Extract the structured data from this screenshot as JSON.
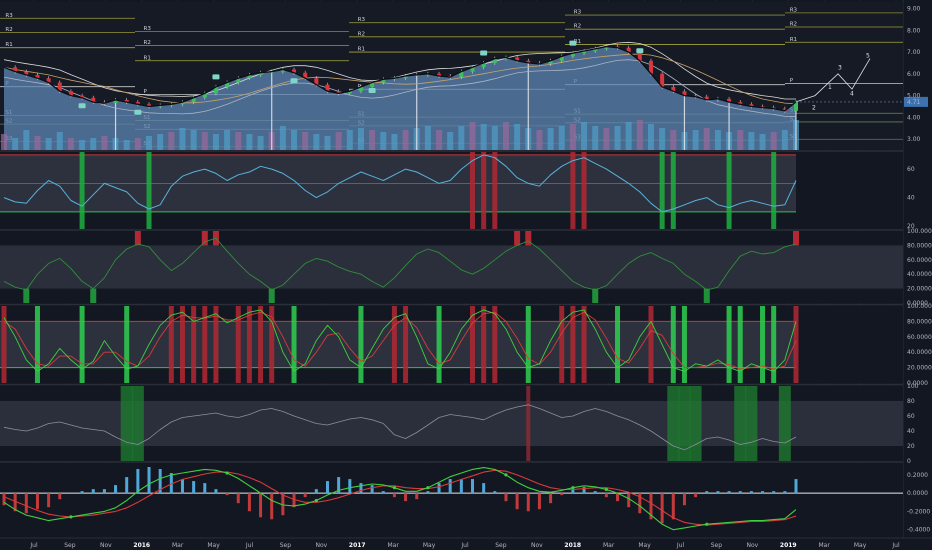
{
  "chart_data": {
    "type": "line",
    "x_axis": {
      "labels": [
        "Jul",
        "Sep",
        "Nov",
        "2016",
        "Mar",
        "May",
        "Jul",
        "Sep",
        "Nov",
        "2017",
        "Mar",
        "May",
        "Jul",
        "Sep",
        "Nov",
        "2018",
        "Mar",
        "May",
        "Jul",
        "Sep",
        "Nov",
        "2019",
        "Mar",
        "May",
        "Jul"
      ],
      "year_labels": [
        "2016",
        "2017",
        "2018",
        "2019"
      ]
    },
    "panes": [
      {
        "name": "price",
        "yticks": [
          "9.00",
          "8.00",
          "7.00",
          "6.00",
          "5.00",
          "4.00",
          "3.00"
        ],
        "ylim": [
          2.5,
          9.3
        ],
        "current_price": "4.71",
        "close": [
          6.3,
          6.1,
          5.95,
          5.8,
          5.6,
          5.2,
          5.0,
          4.9,
          4.7,
          4.65,
          4.8,
          4.7,
          4.6,
          4.5,
          4.55,
          4.6,
          4.7,
          4.9,
          5.1,
          5.4,
          5.6,
          5.8,
          5.95,
          6.05,
          6.1,
          6.2,
          6.05,
          5.8,
          5.5,
          5.2,
          5.1,
          5.2,
          5.4,
          5.6,
          5.75,
          5.8,
          5.9,
          5.95,
          6.0,
          5.9,
          5.85,
          6.1,
          6.3,
          6.5,
          6.7,
          6.75,
          6.6,
          6.5,
          6.45,
          6.6,
          6.8,
          6.95,
          7.05,
          7.15,
          7.25,
          7.2,
          7.0,
          6.6,
          6.0,
          5.4,
          5.2,
          5.0,
          4.95,
          4.8,
          4.85,
          4.7,
          4.6,
          4.5,
          4.45,
          4.4,
          4.3,
          4.71
        ],
        "volume": [
          0.4,
          0.3,
          0.5,
          0.35,
          0.3,
          0.45,
          0.3,
          0.25,
          0.3,
          0.35,
          0.3,
          0.25,
          0.3,
          0.35,
          0.4,
          0.45,
          0.55,
          0.5,
          0.45,
          0.4,
          0.5,
          0.45,
          0.4,
          0.35,
          0.45,
          0.6,
          0.5,
          0.45,
          0.4,
          0.35,
          0.45,
          0.5,
          0.55,
          0.5,
          0.45,
          0.4,
          0.5,
          0.55,
          0.6,
          0.5,
          0.45,
          0.6,
          0.7,
          0.65,
          0.6,
          0.7,
          0.65,
          0.55,
          0.5,
          0.55,
          0.6,
          0.65,
          0.7,
          0.6,
          0.55,
          0.6,
          0.7,
          0.75,
          0.65,
          0.55,
          0.5,
          0.45,
          0.5,
          0.55,
          0.5,
          0.45,
          0.5,
          0.45,
          0.4,
          0.45,
          0.5,
          0.75
        ],
        "levels": [
          {
            "label": "R3",
            "value": 8.2
          },
          {
            "label": "R2",
            "value": 7.55
          },
          {
            "label": "R1",
            "value": 6.85
          },
          {
            "label": "P",
            "value": 5.2
          },
          {
            "label": "S1",
            "value": 3.95
          },
          {
            "label": "S2",
            "value": 3.55
          },
          {
            "label": "S3",
            "value": 2.75
          }
        ],
        "projection_labels": [
          "1",
          "2",
          "3",
          "4",
          "5"
        ]
      },
      {
        "name": "rsi",
        "yticks": [
          "60",
          "40",
          "20"
        ],
        "ylim": [
          18,
          72
        ],
        "upper": 70,
        "lower": 30,
        "values": [
          40,
          37,
          36,
          45,
          52,
          48,
          38,
          34,
          42,
          50,
          47,
          44,
          36,
          32,
          35,
          48,
          55,
          58,
          60,
          57,
          52,
          56,
          58,
          62,
          60,
          57,
          52,
          45,
          40,
          44,
          50,
          54,
          58,
          55,
          52,
          56,
          60,
          58,
          54,
          50,
          52,
          60,
          66,
          70,
          68,
          62,
          54,
          50,
          48,
          56,
          62,
          66,
          68,
          64,
          60,
          55,
          50,
          44,
          36,
          30,
          32,
          35,
          38,
          40,
          35,
          33,
          36,
          38,
          36,
          34,
          35,
          52
        ]
      },
      {
        "name": "mfi",
        "yticks": [
          "100.0000",
          "80.0000",
          "60.0000",
          "40.0000",
          "20.0000",
          "0.0000"
        ],
        "ylim": [
          0,
          100
        ],
        "upper": 80,
        "lower": 20,
        "values": [
          30,
          22,
          18,
          40,
          55,
          62,
          48,
          30,
          20,
          35,
          60,
          75,
          82,
          78,
          60,
          45,
          55,
          70,
          85,
          90,
          72,
          55,
          40,
          30,
          18,
          25,
          40,
          55,
          62,
          58,
          50,
          44,
          40,
          30,
          22,
          35,
          52,
          68,
          75,
          70,
          58,
          46,
          40,
          48,
          60,
          72,
          80,
          86,
          75,
          60,
          45,
          30,
          22,
          18,
          24,
          40,
          55,
          65,
          70,
          62,
          55,
          40,
          30,
          18,
          22,
          45,
          65,
          72,
          68,
          70,
          78,
          82
        ]
      },
      {
        "name": "stochastic",
        "yticks": [
          "100.0000",
          "80.0000",
          "60.0000",
          "40.0000",
          "20.0000",
          "0.0000"
        ],
        "ylim": [
          0,
          100
        ],
        "upper": 80,
        "lower": 20,
        "k": [
          85,
          60,
          30,
          15,
          25,
          45,
          30,
          18,
          28,
          55,
          35,
          18,
          22,
          50,
          75,
          88,
          92,
          80,
          85,
          90,
          78,
          85,
          92,
          95,
          80,
          40,
          15,
          25,
          55,
          75,
          60,
          30,
          20,
          45,
          70,
          85,
          90,
          60,
          25,
          18,
          40,
          70,
          88,
          95,
          90,
          70,
          40,
          20,
          25,
          55,
          80,
          92,
          95,
          70,
          40,
          20,
          30,
          60,
          80,
          50,
          20,
          15,
          25,
          22,
          30,
          20,
          15,
          25,
          20,
          15,
          30,
          80
        ],
        "d": [
          80,
          70,
          45,
          25,
          22,
          35,
          35,
          25,
          25,
          40,
          40,
          28,
          22,
          35,
          60,
          80,
          88,
          85,
          84,
          87,
          82,
          82,
          88,
          92,
          86,
          60,
          30,
          22,
          40,
          62,
          65,
          45,
          28,
          35,
          55,
          75,
          85,
          72,
          45,
          25,
          30,
          55,
          78,
          90,
          92,
          80,
          58,
          32,
          24,
          40,
          65,
          85,
          92,
          82,
          58,
          32,
          26,
          45,
          68,
          62,
          38,
          20,
          20,
          22,
          26,
          24,
          18,
          20,
          22,
          18,
          22,
          55
        ]
      },
      {
        "name": "rsi-smooth",
        "yticks": [
          "100",
          "80",
          "60",
          "40",
          "20",
          "0"
        ],
        "ylim": [
          0,
          100
        ],
        "upper": 80,
        "lower": 20,
        "values": [
          45,
          42,
          40,
          44,
          50,
          52,
          48,
          44,
          42,
          40,
          32,
          25,
          22,
          30,
          42,
          52,
          58,
          60,
          62,
          64,
          60,
          58,
          62,
          68,
          70,
          66,
          60,
          55,
          50,
          48,
          52,
          56,
          58,
          55,
          50,
          35,
          30,
          38,
          48,
          58,
          62,
          60,
          58,
          55,
          62,
          68,
          72,
          75,
          70,
          64,
          58,
          60,
          66,
          70,
          66,
          60,
          55,
          48,
          40,
          30,
          20,
          15,
          22,
          30,
          32,
          28,
          22,
          25,
          30,
          26,
          24,
          32
        ]
      },
      {
        "name": "macd",
        "yticks": [
          "0.2000",
          "0.0000",
          "-0.2000",
          "-0.4000"
        ],
        "ylim": [
          -0.48,
          0.33
        ],
        "macd": [
          -0.1,
          -0.18,
          -0.24,
          -0.27,
          -0.3,
          -0.28,
          -0.26,
          -0.24,
          -0.22,
          -0.2,
          -0.16,
          -0.08,
          0.02,
          0.1,
          0.16,
          0.2,
          0.22,
          0.24,
          0.26,
          0.25,
          0.22,
          0.16,
          0.08,
          0.0,
          -0.08,
          -0.13,
          -0.14,
          -0.12,
          -0.08,
          -0.02,
          0.03,
          0.06,
          0.08,
          0.1,
          0.09,
          0.06,
          0.02,
          0.02,
          0.06,
          0.12,
          0.18,
          0.22,
          0.26,
          0.28,
          0.26,
          0.2,
          0.12,
          0.06,
          0.02,
          0.01,
          0.03,
          0.06,
          0.08,
          0.07,
          0.04,
          0.0,
          -0.06,
          -0.14,
          -0.24,
          -0.34,
          -0.4,
          -0.38,
          -0.36,
          -0.34,
          -0.33,
          -0.32,
          -0.31,
          -0.3,
          -0.3,
          -0.29,
          -0.28,
          -0.18
        ],
        "signal": [
          -0.04,
          -0.09,
          -0.14,
          -0.19,
          -0.23,
          -0.25,
          -0.26,
          -0.25,
          -0.24,
          -0.22,
          -0.2,
          -0.16,
          -0.1,
          -0.03,
          0.04,
          0.1,
          0.15,
          0.18,
          0.21,
          0.23,
          0.23,
          0.21,
          0.17,
          0.12,
          0.05,
          -0.02,
          -0.07,
          -0.1,
          -0.1,
          -0.08,
          -0.05,
          -0.01,
          0.03,
          0.06,
          0.08,
          0.08,
          0.06,
          0.05,
          0.05,
          0.07,
          0.11,
          0.15,
          0.19,
          0.23,
          0.25,
          0.24,
          0.2,
          0.15,
          0.1,
          0.06,
          0.04,
          0.04,
          0.05,
          0.06,
          0.06,
          0.04,
          0.01,
          -0.04,
          -0.11,
          -0.19,
          -0.27,
          -0.32,
          -0.34,
          -0.35,
          -0.34,
          -0.33,
          -0.32,
          -0.31,
          -0.31,
          -0.3,
          -0.29,
          -0.25
        ]
      }
    ]
  }
}
